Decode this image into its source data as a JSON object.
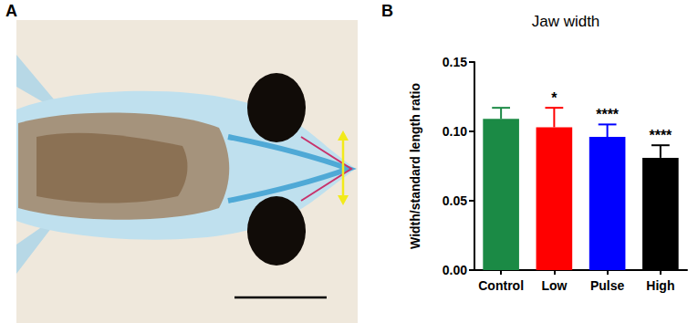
{
  "image_panel": {
    "panel_label": "A"
  },
  "chart_data": {
    "type": "bar",
    "panel_label": "B",
    "title": "Jaw width",
    "y_label": "Width/standard length ratio",
    "categories": [
      "Control",
      "Low",
      "Pulse",
      "High"
    ],
    "values": [
      0.109,
      0.103,
      0.096,
      0.081
    ],
    "errors": [
      0.008,
      0.014,
      0.009,
      0.009
    ],
    "significance": [
      "",
      "*",
      "****",
      "****"
    ],
    "colors": [
      "#1b8a45",
      "#ff0000",
      "#0000ff",
      "#000000"
    ],
    "ylim": [
      0,
      0.15
    ],
    "yticks": [
      {
        "value": 0,
        "label": "0.00"
      },
      {
        "value": 0.05,
        "label": "0.05"
      },
      {
        "value": 0.1,
        "label": "0.10"
      },
      {
        "value": 0.15,
        "label": "0.15"
      }
    ],
    "grid": false
  }
}
